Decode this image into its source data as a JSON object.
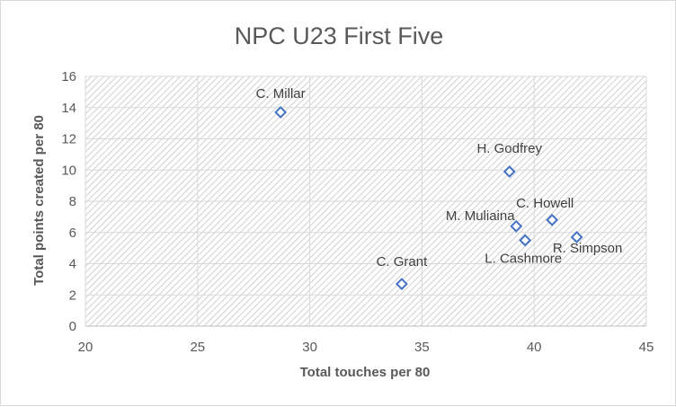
{
  "chart_data": {
    "type": "scatter",
    "title": "NPC U23 First Five",
    "xlabel": "Total touches per 80",
    "ylabel": "Total points created per 80",
    "xlim": [
      20,
      45
    ],
    "ylim": [
      0,
      16
    ],
    "x_ticks": [
      "20",
      "25",
      "30",
      "35",
      "40",
      "45"
    ],
    "y_ticks": [
      "0",
      "2",
      "4",
      "6",
      "8",
      "10",
      "12",
      "14",
      "16"
    ],
    "grid": "horizontal",
    "legend": "none",
    "marker": "diamond",
    "marker_color": "#4472c4",
    "plot_area_pattern": "diagonal hatch",
    "points": [
      {
        "label": "C. Millar",
        "x": 28.7,
        "y": 13.7
      },
      {
        "label": "H. Godfrey",
        "x": 38.9,
        "y": 9.9
      },
      {
        "label": "C. Howell",
        "x": 40.8,
        "y": 6.8
      },
      {
        "label": "M. Muliaina",
        "x": 39.2,
        "y": 6.4
      },
      {
        "label": "L. Cashmore",
        "x": 39.6,
        "y": 5.5
      },
      {
        "label": "R. Simpson",
        "x": 41.9,
        "y": 5.7
      },
      {
        "label": "C. Grant",
        "x": 34.1,
        "y": 2.7
      }
    ]
  }
}
